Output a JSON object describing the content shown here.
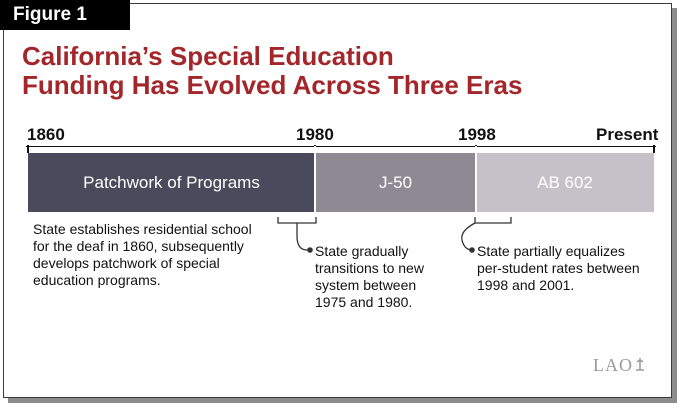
{
  "figure_label": "Figure 1",
  "title_line1": "California’s Special Education",
  "title_line2": "Funding Has Evolved Across Three Eras",
  "timeline": {
    "years": [
      "1860",
      "1980",
      "1998",
      "Present"
    ],
    "eras": [
      {
        "label": "Patchwork of Programs",
        "color": "#4a4a5c"
      },
      {
        "label": "J-50",
        "color": "#8e8a94"
      },
      {
        "label": "AB 602",
        "color": "#c4c2c8"
      }
    ]
  },
  "notes": {
    "era1": [
      "State establishes residential school",
      "for the deaf in 1860, subsequently",
      "develops patchwork of special",
      "education programs."
    ],
    "transition1": [
      "State gradually",
      "transitions to new",
      "system between",
      "1975 and 1980."
    ],
    "transition2": [
      "State partially equalizes",
      "per-student rates between",
      "1998 and 2001."
    ]
  },
  "logo": "LAO"
}
